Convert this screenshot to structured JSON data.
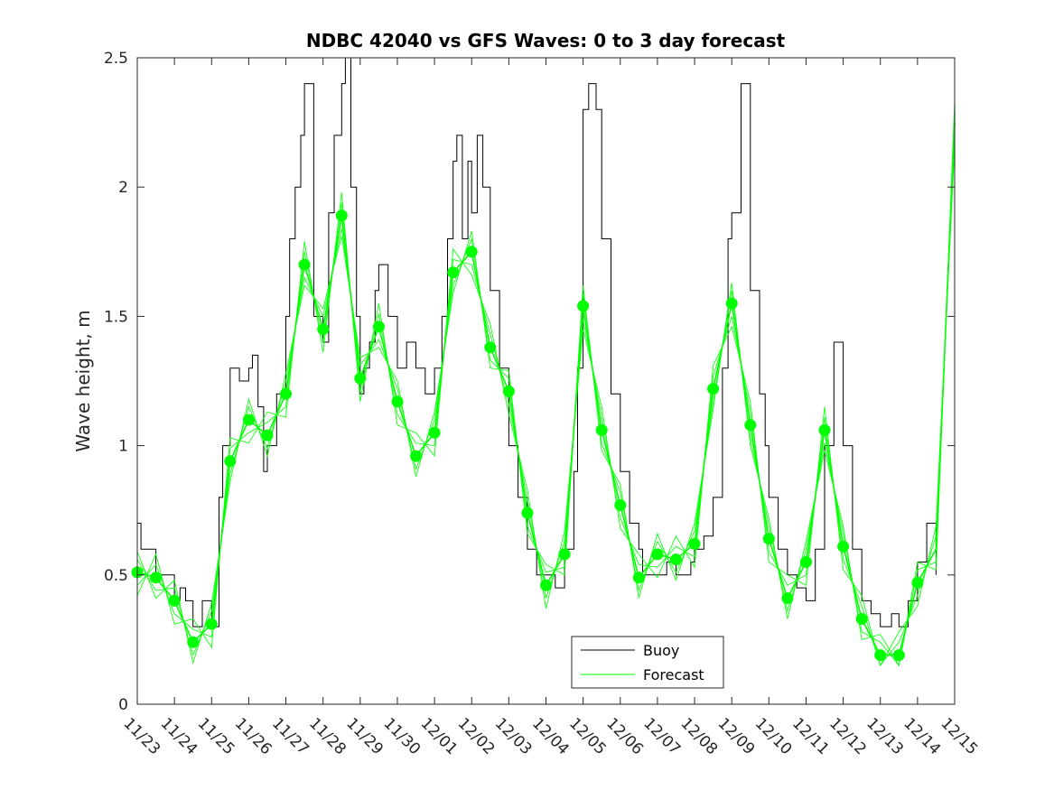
{
  "chart_data": {
    "type": "line",
    "title": "NDBC 42040 vs GFS Waves: 0 to 3 day forecast",
    "xlabel": "",
    "ylabel": "Wave height, m",
    "xlim": [
      0,
      22
    ],
    "ylim": [
      0,
      2.5
    ],
    "yticks": [
      0,
      0.5,
      1,
      1.5,
      2,
      2.5
    ],
    "ytick_labels": [
      "0",
      "0.5",
      "1",
      "1.5",
      "2",
      "2.5"
    ],
    "xtick_labels": [
      "11/23",
      "11/24",
      "11/25",
      "11/26",
      "11/27",
      "11/28",
      "11/29",
      "11/30",
      "12/01",
      "12/02",
      "12/03",
      "12/04",
      "12/05",
      "12/06",
      "12/07",
      "12/08",
      "12/09",
      "12/10",
      "12/11",
      "12/12",
      "12/13",
      "12/14",
      "12/15"
    ],
    "grid": false,
    "legend": {
      "position": "bottom-center",
      "entries": [
        "Buoy",
        "Forecast"
      ]
    },
    "colors": {
      "buoy": "#000000",
      "forecast": "#00ff00",
      "axes": "#262626"
    },
    "series": [
      {
        "name": "Buoy",
        "x": [
          0,
          0.1,
          0.25,
          0.5,
          0.75,
          1.0,
          1.15,
          1.3,
          1.5,
          1.75,
          2.0,
          2.2,
          2.3,
          2.5,
          2.75,
          3.0,
          3.1,
          3.25,
          3.4,
          3.5,
          3.75,
          4.0,
          4.1,
          4.25,
          4.4,
          4.5,
          4.75,
          5.0,
          5.15,
          5.3,
          5.5,
          5.6,
          5.75,
          5.9,
          6.0,
          6.1,
          6.25,
          6.4,
          6.5,
          6.75,
          7.0,
          7.25,
          7.5,
          7.75,
          8.0,
          8.2,
          8.35,
          8.5,
          8.6,
          8.75,
          8.9,
          9.0,
          9.15,
          9.3,
          9.5,
          9.75,
          10.0,
          10.25,
          10.5,
          10.75,
          11.0,
          11.25,
          11.5,
          11.75,
          11.85,
          12.0,
          12.15,
          12.35,
          12.5,
          12.75,
          13.0,
          13.25,
          13.5,
          13.6,
          13.75,
          14.0,
          14.25,
          14.5,
          14.75,
          14.9,
          15.0,
          15.25,
          15.5,
          15.75,
          15.9,
          16.0,
          16.25,
          16.5,
          16.75,
          16.9,
          17.0,
          17.25,
          17.5,
          17.6,
          17.75,
          18.0,
          18.25,
          18.5,
          18.75,
          19.0,
          19.25,
          19.5,
          19.75,
          20.0,
          20.15,
          20.3,
          20.5,
          20.75,
          21.0,
          21.25,
          21.5
        ],
        "y": [
          0.7,
          0.6,
          0.6,
          0.5,
          0.5,
          0.4,
          0.45,
          0.4,
          0.3,
          0.4,
          0.3,
          0.8,
          1.0,
          1.3,
          1.25,
          1.3,
          1.35,
          1.15,
          0.9,
          1.0,
          1.2,
          1.5,
          1.8,
          2.0,
          2.2,
          2.4,
          1.5,
          1.4,
          1.9,
          2.2,
          2.4,
          2.5,
          2.0,
          1.5,
          1.2,
          1.3,
          1.4,
          1.6,
          1.7,
          1.5,
          1.3,
          1.4,
          1.3,
          1.2,
          1.3,
          1.5,
          1.8,
          2.1,
          2.2,
          1.8,
          2.1,
          1.9,
          2.2,
          2.0,
          1.6,
          1.3,
          1.0,
          0.8,
          0.6,
          0.5,
          0.5,
          0.45,
          0.6,
          0.9,
          1.3,
          2.3,
          2.4,
          2.3,
          1.8,
          1.2,
          0.9,
          0.7,
          0.6,
          0.5,
          0.5,
          0.5,
          0.55,
          0.5,
          0.5,
          0.55,
          0.6,
          0.65,
          0.8,
          1.3,
          1.8,
          1.9,
          2.4,
          1.6,
          1.2,
          1.0,
          0.8,
          0.6,
          0.5,
          0.5,
          0.45,
          0.4,
          0.6,
          1.0,
          1.4,
          1.0,
          0.6,
          0.4,
          0.35,
          0.3,
          0.3,
          0.35,
          0.3,
          0.4,
          0.55,
          0.7,
          0.5
        ]
      },
      {
        "name": "Forecast",
        "x": [
          0,
          0.5,
          1.0,
          1.5,
          2.0,
          2.5,
          3.0,
          3.5,
          4.0,
          4.5,
          5.0,
          5.5,
          6.0,
          6.5,
          7.0,
          7.5,
          8.0,
          8.5,
          9.0,
          9.5,
          10.0,
          10.5,
          11.0,
          11.5,
          12.0,
          12.5,
          13.0,
          13.5,
          14.0,
          14.5,
          15.0,
          15.5,
          16.0,
          16.5,
          17.0,
          17.5,
          18.0,
          18.5,
          19.0,
          19.5,
          20.0,
          20.5,
          21.0,
          21.5,
          22.0
        ],
        "y": [
          0.51,
          0.49,
          0.4,
          0.24,
          0.31,
          0.94,
          1.1,
          1.04,
          1.2,
          1.7,
          1.45,
          1.89,
          1.26,
          1.46,
          1.17,
          0.96,
          1.05,
          1.67,
          1.75,
          1.38,
          1.21,
          0.74,
          0.46,
          0.58,
          1.54,
          1.06,
          0.77,
          0.49,
          0.58,
          0.56,
          0.62,
          1.22,
          1.55,
          1.08,
          0.64,
          0.41,
          0.55,
          1.06,
          0.61,
          0.33,
          0.19,
          0.19,
          0.47,
          0.6,
          2.25
        ]
      }
    ],
    "markers": {
      "name": "Forecast analysis points",
      "x": [
        0,
        0.5,
        1.0,
        1.5,
        2.0,
        2.5,
        3.0,
        3.5,
        4.0,
        4.5,
        5.0,
        5.5,
        6.0,
        6.5,
        7.0,
        7.5,
        8.0,
        8.5,
        9.0,
        9.5,
        10.0,
        10.5,
        11.0,
        11.5,
        12.0,
        12.5,
        13.0,
        13.5,
        14.0,
        14.5,
        15.0,
        15.5,
        16.0,
        16.5,
        17.0,
        17.5,
        18.0,
        18.5,
        19.0,
        19.5,
        20.0,
        20.5,
        21.0
      ],
      "y": [
        0.51,
        0.49,
        0.4,
        0.24,
        0.31,
        0.94,
        1.1,
        1.04,
        1.2,
        1.7,
        1.45,
        1.89,
        1.26,
        1.46,
        1.17,
        0.96,
        1.05,
        1.67,
        1.75,
        1.38,
        1.21,
        0.74,
        0.46,
        0.58,
        1.54,
        1.06,
        0.77,
        0.49,
        0.58,
        0.56,
        0.62,
        1.22,
        1.55,
        1.08,
        0.64,
        0.41,
        0.55,
        1.06,
        0.61,
        0.33,
        0.19,
        0.19,
        0.47
      ]
    }
  }
}
